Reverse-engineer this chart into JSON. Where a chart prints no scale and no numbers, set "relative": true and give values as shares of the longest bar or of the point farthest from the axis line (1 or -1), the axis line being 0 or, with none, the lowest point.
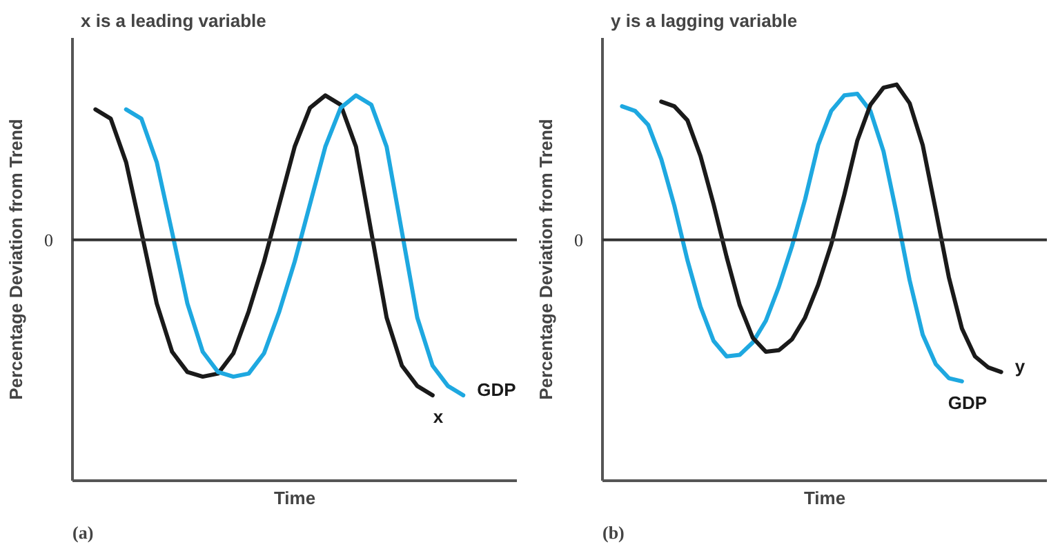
{
  "chart_data": [
    {
      "type": "line",
      "title": "x is a leading variable",
      "xlabel": "Time",
      "ylabel": "Percentage Deviation from Trend",
      "relative": true,
      "annotations": [
        "(a)"
      ],
      "ref_lines": [
        {
          "axis": "y",
          "value": 0,
          "label": "0",
          "color": "#333333"
        }
      ],
      "categories": [
        null,
        null,
        null,
        null,
        null,
        null,
        null,
        null,
        null,
        null,
        null,
        null,
        null,
        null,
        null,
        null,
        null,
        null,
        null,
        null,
        null,
        null,
        null,
        null,
        null
      ],
      "series": [
        {
          "name": "x",
          "color": "#1a1a1a",
          "values": [
            0.84,
            0.78,
            0.5,
            0.05,
            -0.41,
            -0.72,
            -0.85,
            -0.88,
            -0.86,
            -0.73,
            -0.46,
            -0.14,
            0.23,
            0.6,
            0.85,
            0.93,
            0.87,
            0.6,
            0.05,
            -0.5,
            -0.81,
            -0.94,
            -1,
            null,
            null
          ]
        },
        {
          "name": "GDP",
          "color": "#1ea8e0",
          "values": [
            null,
            null,
            0.84,
            0.78,
            0.5,
            0.05,
            -0.41,
            -0.72,
            -0.85,
            -0.88,
            -0.86,
            -0.73,
            -0.46,
            -0.14,
            0.23,
            0.6,
            0.85,
            0.93,
            0.87,
            0.6,
            0.05,
            -0.5,
            -0.81,
            -0.94,
            -1
          ]
        }
      ]
    },
    {
      "type": "line",
      "title": "y is a lagging variable",
      "xlabel": "Time",
      "ylabel": "Percentage Deviation from Trend",
      "relative": true,
      "annotations": [
        "(b)"
      ],
      "ref_lines": [
        {
          "axis": "y",
          "value": 0,
          "label": "0",
          "color": "#333333"
        }
      ],
      "categories": [
        null,
        null,
        null,
        null,
        null,
        null,
        null,
        null,
        null,
        null,
        null,
        null,
        null,
        null,
        null,
        null,
        null,
        null,
        null,
        null,
        null,
        null,
        null,
        null,
        null,
        null,
        null,
        null,
        null,
        null
      ],
      "series": [
        {
          "name": "GDP",
          "color": "#1ea8e0",
          "values": [
            0.86,
            0.83,
            0.74,
            0.52,
            0.22,
            -0.13,
            -0.43,
            -0.65,
            -0.75,
            -0.74,
            -0.66,
            -0.52,
            -0.3,
            -0.04,
            0.26,
            0.61,
            0.83,
            0.93,
            0.94,
            0.83,
            0.57,
            0.17,
            -0.26,
            -0.61,
            -0.8,
            -0.89,
            -0.91,
            null,
            null,
            null
          ]
        },
        {
          "name": "y",
          "color": "#1a1a1a",
          "values": [
            null,
            null,
            null,
            0.89,
            0.86,
            0.77,
            0.54,
            0.23,
            -0.11,
            -0.42,
            -0.63,
            -0.72,
            -0.71,
            -0.64,
            -0.5,
            -0.29,
            -0.03,
            0.29,
            0.64,
            0.87,
            0.98,
            1,
            0.88,
            0.61,
            0.19,
            -0.24,
            -0.57,
            -0.75,
            -0.82,
            -0.85
          ]
        }
      ]
    }
  ]
}
